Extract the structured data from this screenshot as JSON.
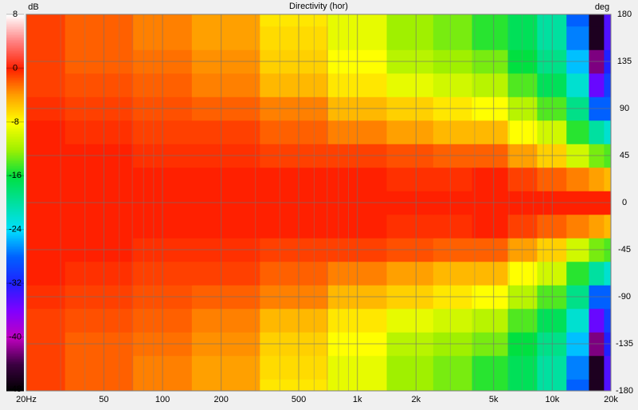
{
  "chart_data": {
    "type": "heatmap",
    "title": "Directivity (hor)",
    "colorbar_label": "dB",
    "y_axis_label": "deg",
    "log_x": true,
    "grid": true,
    "xlim": [
      20,
      20000
    ],
    "xticks": [
      {
        "value": 20,
        "label": "20Hz"
      },
      50,
      100,
      200,
      500,
      {
        "value": 1000,
        "label": "1k"
      },
      {
        "value": 2000,
        "label": "2k"
      },
      {
        "value": 5000,
        "label": "5k"
      },
      {
        "value": 10000,
        "label": "10k"
      },
      {
        "value": 20000,
        "label": "20k"
      }
    ],
    "x_minor_ticks": [
      30,
      40,
      60,
      70,
      80,
      90,
      300,
      400,
      600,
      700,
      800,
      900,
      3000,
      4000,
      6000,
      7000,
      8000,
      9000
    ],
    "ylim": [
      -180,
      180
    ],
    "yticks": [
      180,
      135,
      90,
      45,
      0,
      -45,
      -90,
      -135,
      -180
    ],
    "clim": [
      -48,
      8
    ],
    "cticks": [
      8,
      0,
      -8,
      -16,
      -24,
      -32,
      -40,
      -48
    ],
    "colorscale": [
      [
        -48,
        "#000000"
      ],
      [
        -44,
        "#3a0040"
      ],
      [
        -40,
        "#c000c0"
      ],
      [
        -36,
        "#8000ff"
      ],
      [
        -32,
        "#2020ff"
      ],
      [
        -28,
        "#0060ff"
      ],
      [
        -24,
        "#00e0ff"
      ],
      [
        -20,
        "#00e0a0"
      ],
      [
        -16,
        "#00e040"
      ],
      [
        -12,
        "#a0f000"
      ],
      [
        -8,
        "#ffff00"
      ],
      [
        -4,
        "#ffa000"
      ],
      [
        0,
        "#ff2000"
      ],
      [
        4,
        "#ff8080"
      ],
      [
        8,
        "#ffffff"
      ]
    ],
    "x": [
      20,
      50,
      100,
      200,
      500,
      1000,
      2000,
      3000,
      5000,
      7000,
      10000,
      14000,
      17000,
      20000
    ],
    "y": [
      -180,
      -157.5,
      -135,
      -112.5,
      -90,
      -67.5,
      -45,
      -22.5,
      0,
      22.5,
      45,
      67.5,
      90,
      112.5,
      135,
      157.5,
      180
    ],
    "z": [
      [
        -1,
        -2,
        -3,
        -4,
        -7,
        -9,
        -12,
        -13,
        -15,
        -17,
        -20,
        -28,
        -46,
        -34
      ],
      [
        -1,
        -2,
        -3,
        -4,
        -6.5,
        -9,
        -12,
        -13,
        -15,
        -17,
        -20,
        -27,
        -46,
        -34
      ],
      [
        -1,
        -2,
        -2.5,
        -3.5,
        -6,
        -8,
        -11,
        -12,
        -13,
        -16,
        -19,
        -25,
        -42,
        -32
      ],
      [
        -1,
        -1.5,
        -2,
        -3,
        -5,
        -7,
        -9,
        -10,
        -11,
        -14,
        -17,
        -22,
        -35,
        -30
      ],
      [
        -0.5,
        -1,
        -1.5,
        -2,
        -3,
        -5,
        -6,
        -7,
        -8,
        -11,
        -14,
        -19,
        -28,
        -28
      ],
      [
        0,
        -0.5,
        -1,
        -1,
        -2,
        -3,
        -4,
        -5,
        -5,
        -8,
        -10,
        -15,
        -20,
        -22
      ],
      [
        0,
        0,
        -0.5,
        -0.5,
        -1,
        -1,
        -1.5,
        -2,
        -2,
        -4,
        -6,
        -10,
        -13,
        -14
      ],
      [
        0,
        0,
        0,
        0,
        0,
        0,
        -0.5,
        -0.5,
        0,
        -1,
        -2,
        -3,
        -4,
        -5
      ],
      [
        0,
        0,
        0,
        0,
        0,
        0,
        0,
        0,
        0,
        0,
        0,
        0,
        0,
        0
      ],
      [
        0,
        0,
        0,
        0,
        0,
        0,
        -0.5,
        -0.5,
        0,
        -1,
        -2,
        -3,
        -4,
        -5
      ],
      [
        0,
        0,
        -0.5,
        -0.5,
        -1,
        -1,
        -1.5,
        -2,
        -2,
        -4,
        -6,
        -10,
        -13,
        -14
      ],
      [
        0,
        -0.5,
        -1,
        -1,
        -2,
        -3,
        -4,
        -5,
        -5,
        -8,
        -10,
        -15,
        -20,
        -22
      ],
      [
        -0.5,
        -1,
        -1.5,
        -2,
        -3,
        -5,
        -6,
        -7,
        -8,
        -11,
        -14,
        -19,
        -28,
        -28
      ],
      [
        -1,
        -1.5,
        -2,
        -3,
        -5,
        -7,
        -9,
        -10,
        -11,
        -14,
        -17,
        -22,
        -35,
        -30
      ],
      [
        -1,
        -2,
        -2.5,
        -3.5,
        -6,
        -8,
        -11,
        -12,
        -13,
        -16,
        -19,
        -25,
        -42,
        -32
      ],
      [
        -1,
        -2,
        -3,
        -4,
        -6.5,
        -9,
        -12,
        -13,
        -15,
        -17,
        -20,
        -27,
        -46,
        -34
      ],
      [
        -1,
        -2,
        -3,
        -4,
        -7,
        -9,
        -12,
        -13,
        -15,
        -17,
        -20,
        -28,
        -46,
        -34
      ]
    ]
  }
}
